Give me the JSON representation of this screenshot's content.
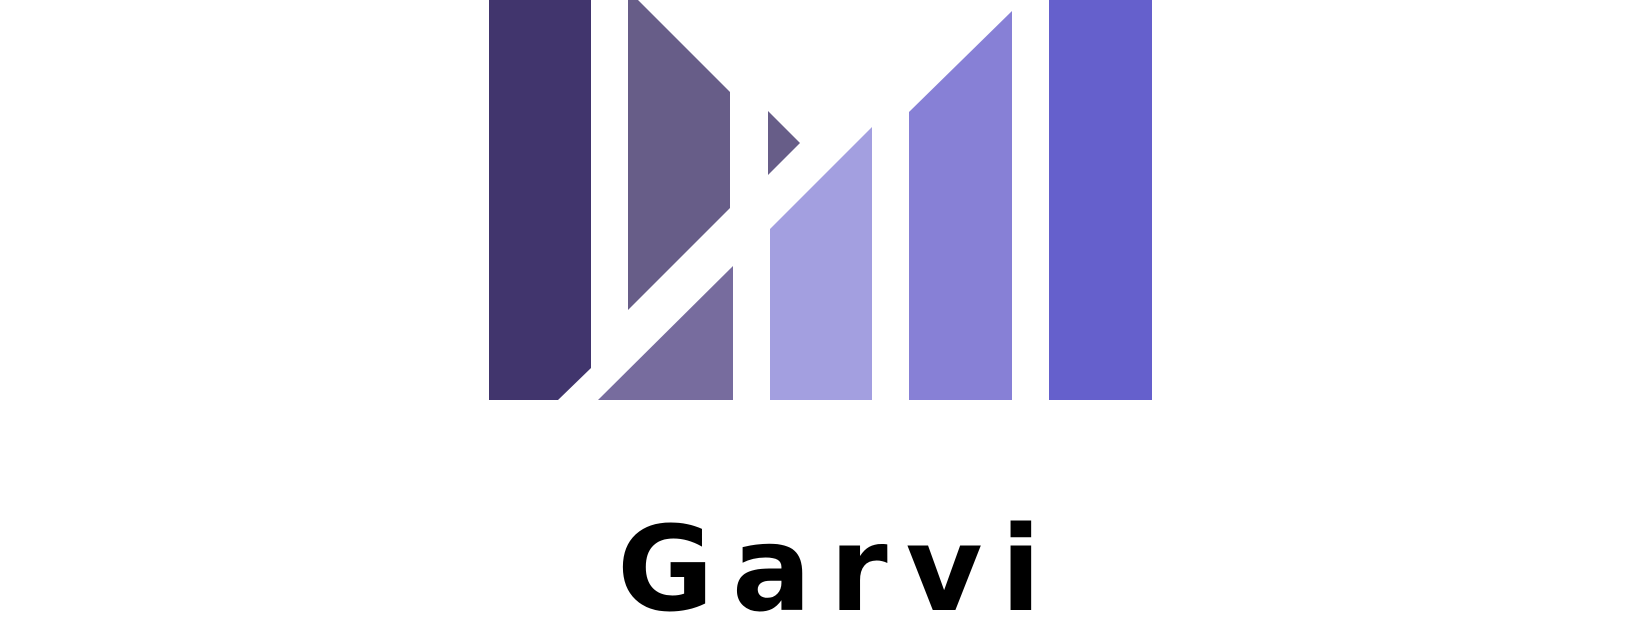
{
  "logo": {
    "icon": "stylized-bar-chart-m-icon",
    "colors": {
      "bar1": "#41356d",
      "bar2": "#675d88",
      "bar3": "#776c9e",
      "bar4": "#a39fe0",
      "bar5": "#8780d6",
      "bar6": "#6560cc"
    }
  },
  "brand": {
    "name": "Garvi"
  }
}
